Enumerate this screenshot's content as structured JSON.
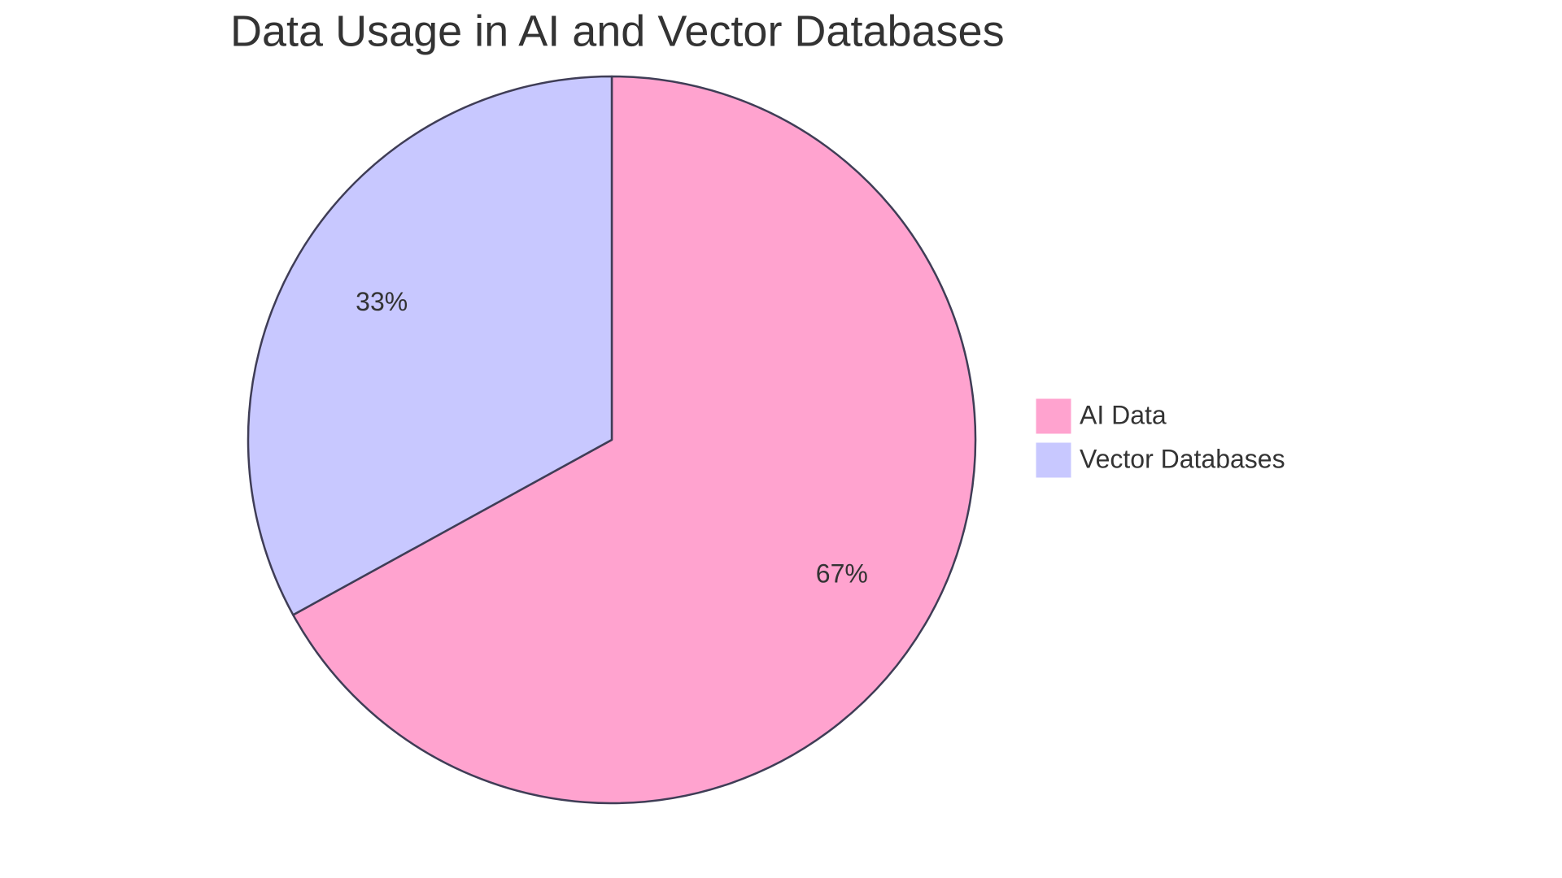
{
  "chart_data": {
    "type": "pie",
    "title": "Data Usage in AI and Vector Databases",
    "categories": [
      "AI Data",
      "Vector Databases"
    ],
    "values": [
      67,
      33
    ],
    "value_labels": [
      "67%",
      "33%"
    ],
    "colors": [
      "#ffa3cf",
      "#c8c8ff"
    ]
  }
}
